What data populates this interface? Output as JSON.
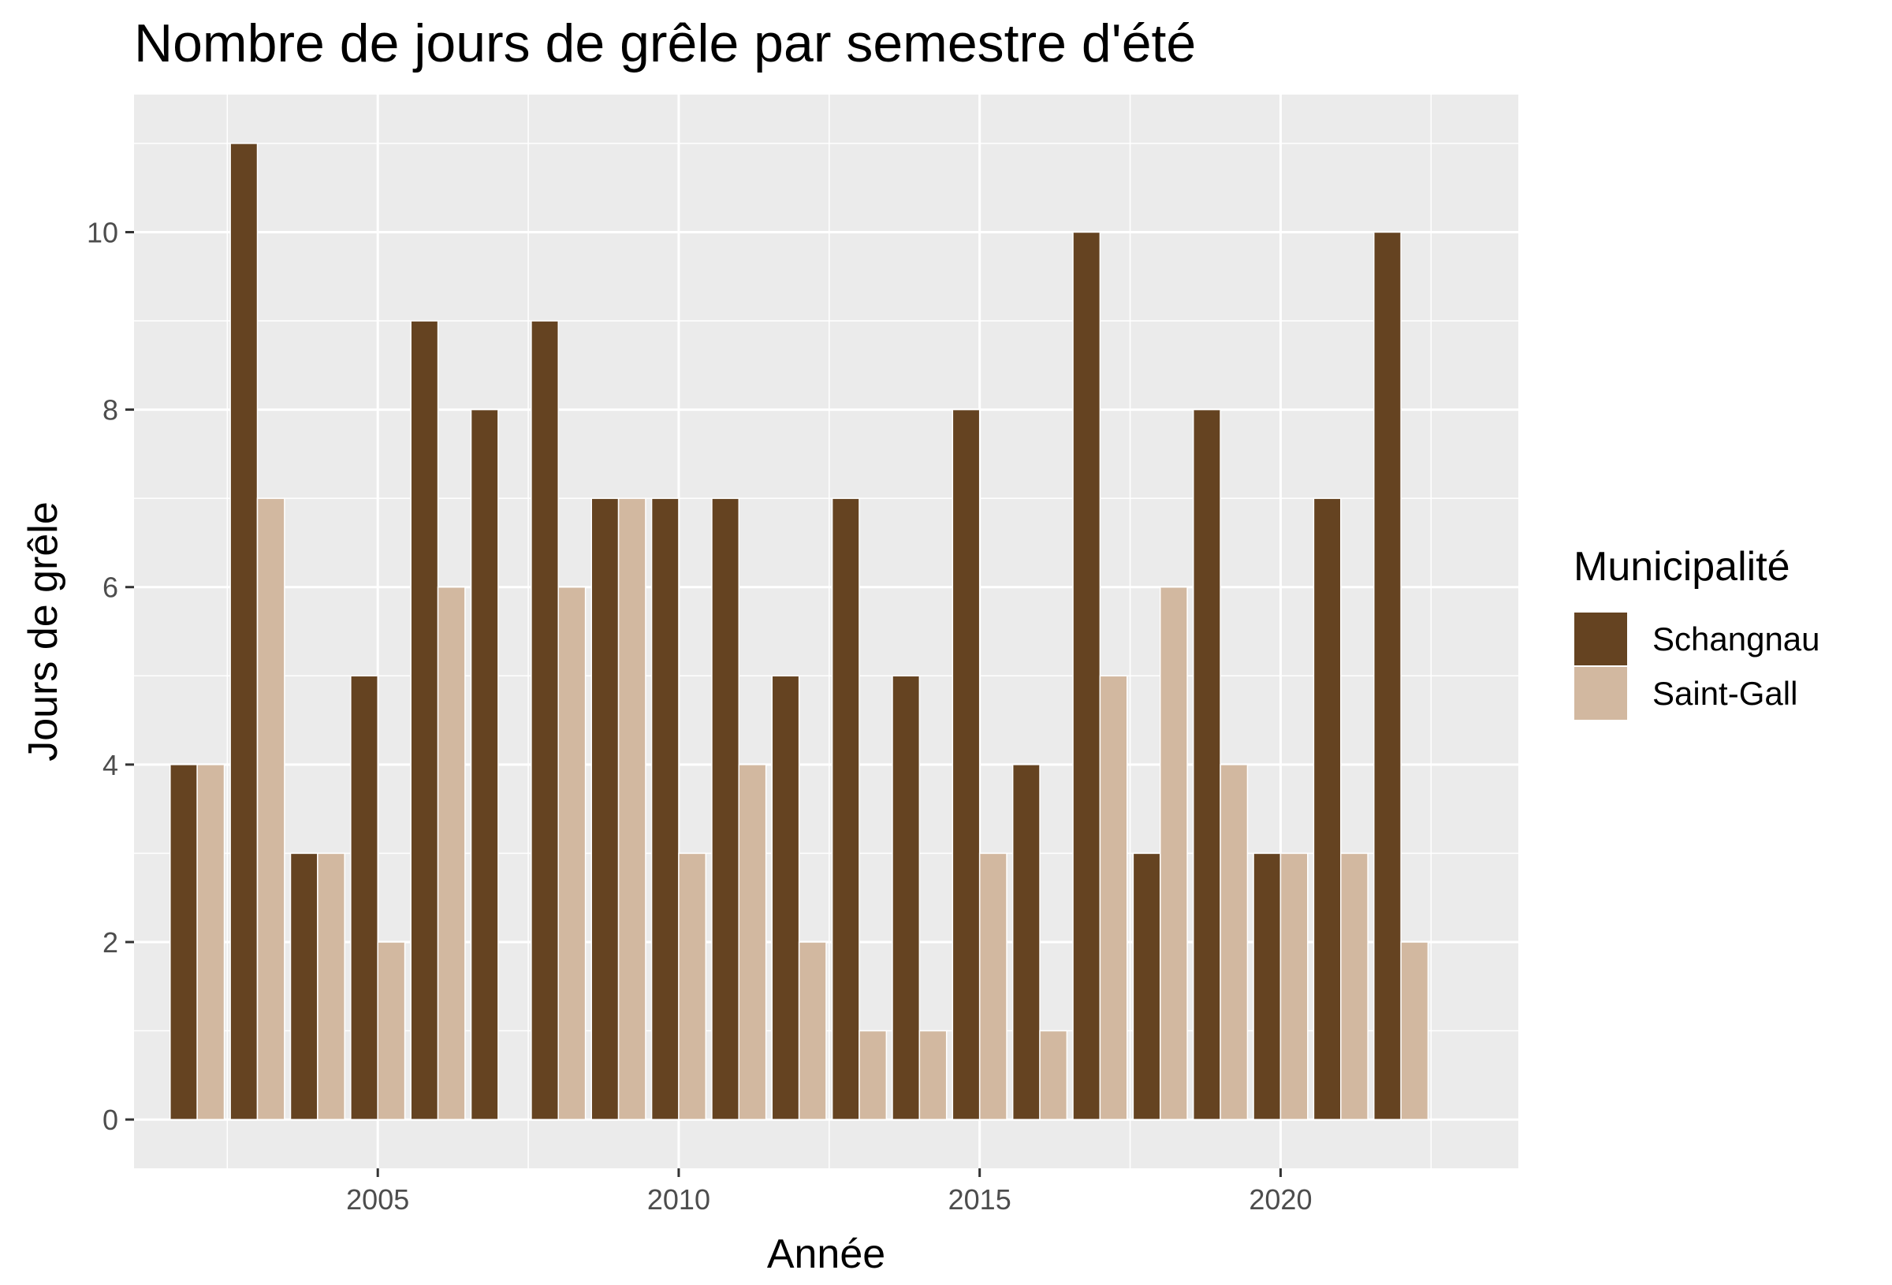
{
  "chart_data": {
    "type": "bar",
    "title": "Nombre de jours de grêle par semestre d'été",
    "xlabel": "Année",
    "ylabel": "Jours de grêle",
    "x": [
      2002,
      2003,
      2004,
      2005,
      2006,
      2007,
      2008,
      2009,
      2010,
      2011,
      2012,
      2013,
      2014,
      2015,
      2016,
      2017,
      2018,
      2019,
      2020,
      2021,
      2022
    ],
    "xticks": [
      2005,
      2010,
      2015,
      2020
    ],
    "xlim": [
      2000.95,
      2023.95
    ],
    "yticks": [
      0,
      2,
      4,
      6,
      8,
      10
    ],
    "ylim": [
      -0.55,
      11.55
    ],
    "series": [
      {
        "name": "Schangnau",
        "color": "#654321",
        "values": [
          4,
          11,
          3,
          5,
          9,
          8,
          9,
          7,
          7,
          7,
          5,
          7,
          5,
          8,
          4,
          10,
          3,
          8,
          3,
          7,
          10
        ]
      },
      {
        "name": "Saint-Gall",
        "color": "#D2B8A0",
        "values": [
          4,
          7,
          3,
          2,
          6,
          0,
          6,
          7,
          3,
          4,
          2,
          1,
          1,
          3,
          1,
          5,
          6,
          4,
          3,
          3,
          2
        ]
      }
    ],
    "legend": {
      "title": "Municipalité",
      "position": "right"
    },
    "grid": true,
    "panel_background": "#EBEBEB",
    "grid_color": "#FFFFFF"
  }
}
